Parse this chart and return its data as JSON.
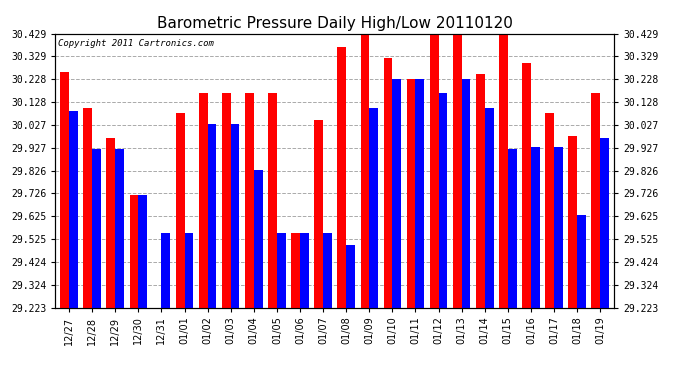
{
  "title": "Barometric Pressure Daily High/Low 20110120",
  "copyright": "Copyright 2011 Cartronics.com",
  "categories": [
    "12/27",
    "12/28",
    "12/29",
    "12/30",
    "12/31",
    "01/01",
    "01/02",
    "01/03",
    "01/04",
    "01/05",
    "01/06",
    "01/07",
    "01/08",
    "01/09",
    "01/10",
    "01/11",
    "01/12",
    "01/13",
    "01/14",
    "01/15",
    "01/16",
    "01/17",
    "01/18",
    "01/19"
  ],
  "highs": [
    30.26,
    30.1,
    29.97,
    29.72,
    29.18,
    30.08,
    30.17,
    30.17,
    30.17,
    30.17,
    29.55,
    30.05,
    30.37,
    30.43,
    30.32,
    30.23,
    30.43,
    30.47,
    30.25,
    30.43,
    30.3,
    30.08,
    29.98,
    30.17
  ],
  "lows": [
    30.09,
    29.92,
    29.92,
    29.72,
    29.55,
    29.55,
    30.03,
    30.03,
    29.83,
    29.55,
    29.55,
    29.55,
    29.5,
    30.1,
    30.23,
    30.23,
    30.17,
    30.23,
    30.1,
    29.92,
    29.93,
    29.93,
    29.63,
    29.97
  ],
  "ymin": 29.223,
  "ymax": 30.429,
  "yticks": [
    29.223,
    29.324,
    29.424,
    29.525,
    29.625,
    29.726,
    29.826,
    29.927,
    30.027,
    30.128,
    30.228,
    30.329,
    30.429
  ],
  "ytick_labels": [
    "29.223",
    "29.324",
    "29.424",
    "29.525",
    "29.625",
    "29.726",
    "29.826",
    "29.927",
    "30.027",
    "30.128",
    "30.228",
    "30.329",
    "30.429"
  ],
  "bar_width": 0.38,
  "high_color": "#ff0000",
  "low_color": "#0000ff",
  "bg_color": "#ffffff",
  "grid_color": "#aaaaaa",
  "title_fontsize": 11,
  "tick_fontsize": 7,
  "copyright_fontsize": 6.5
}
